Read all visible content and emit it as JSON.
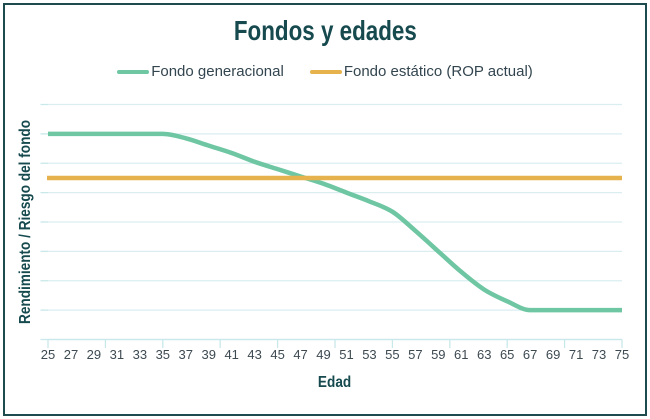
{
  "frame": {
    "border_color": "#1d4b4e",
    "background": "#ffffff"
  },
  "chart_data": {
    "type": "line",
    "title": "Fondos y edades",
    "xlabel": "Edad",
    "ylabel": "Rendimiento / Riesgo del fondo",
    "categories": [
      25,
      27,
      29,
      31,
      33,
      35,
      37,
      39,
      41,
      43,
      45,
      47,
      49,
      51,
      53,
      55,
      57,
      59,
      61,
      63,
      65,
      67,
      69,
      71,
      73,
      75
    ],
    "series": [
      {
        "name": "Fondo generacional",
        "color": "#6ec6a3",
        "style": "smooth",
        "values": [
          7,
          7,
          7,
          7,
          7,
          7,
          6.85,
          6.6,
          6.35,
          6.05,
          5.8,
          5.55,
          5.3,
          5.0,
          4.7,
          4.35,
          3.7,
          3.0,
          2.3,
          1.7,
          1.3,
          1,
          1,
          1,
          1,
          1
        ]
      },
      {
        "name": "Fondo estático (ROP actual)",
        "color": "#e6b24d",
        "style": "straight",
        "values": [
          5.5,
          5.5,
          5.5,
          5.5,
          5.5,
          5.5,
          5.5,
          5.5,
          5.5,
          5.5,
          5.5,
          5.5,
          5.5,
          5.5,
          5.5,
          5.5,
          5.5,
          5.5,
          5.5,
          5.5,
          5.5,
          5.5,
          5.5,
          5.5,
          5.5,
          5.5
        ]
      }
    ],
    "ylim": [
      0,
      8
    ],
    "y_gridline_step": 1,
    "y_tick_labels": "none",
    "x_axis_tick_marks": [
      25,
      30,
      35,
      40,
      45,
      50,
      55,
      60,
      65,
      70,
      75
    ],
    "grid": "horizontal-only",
    "legend_position": "top",
    "colors": {
      "gridline": "#daeef0",
      "axis": "#c8e8e9",
      "tick_label": "#3e4a52",
      "legend_text": "#33454f",
      "title_text": "#164a4e"
    }
  }
}
